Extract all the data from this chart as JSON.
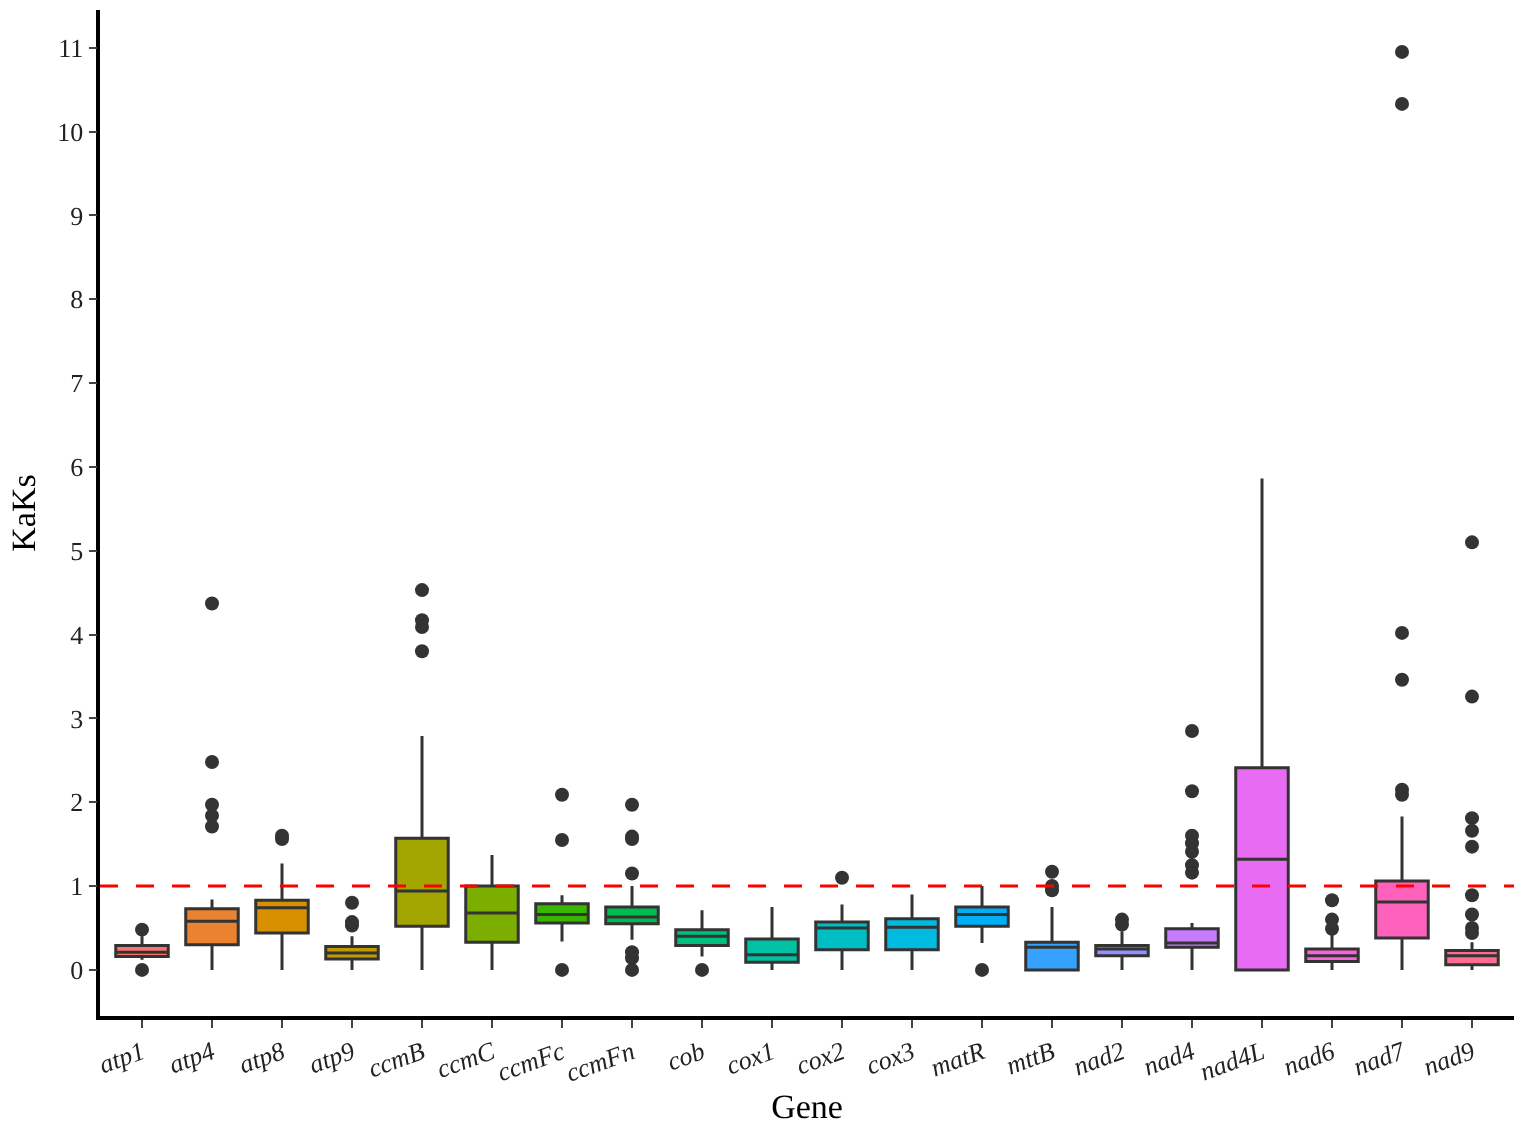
{
  "chart_data": {
    "type": "box",
    "xlabel": "Gene",
    "ylabel": "KaKs",
    "categories": [
      "atp1",
      "atp4",
      "atp8",
      "atp9",
      "ccmB",
      "ccmC",
      "ccmFc",
      "ccmFn",
      "cob",
      "cox1",
      "cox2",
      "cox3",
      "matR",
      "mttB",
      "nad2",
      "nad4",
      "nad4L",
      "nad6",
      "nad7",
      "nad9"
    ],
    "colors": [
      "#f8766d",
      "#ea8331",
      "#d89000",
      "#c09b00",
      "#a3a500",
      "#7cae00",
      "#39b600",
      "#00bb4e",
      "#00bf7d",
      "#00c1a3",
      "#00bfc4",
      "#00bae0",
      "#00b0f6",
      "#35a2ff",
      "#9590ff",
      "#c77cff",
      "#e76bf3",
      "#fa62db",
      "#ff62bc",
      "#ff6c91"
    ],
    "boxes": [
      {
        "low": 0.12,
        "q1": 0.16,
        "median": 0.21,
        "q3": 0.29,
        "high": 0.4,
        "outliers": [
          0.48,
          0
        ]
      },
      {
        "low": 0,
        "q1": 0.3,
        "median": 0.58,
        "q3": 0.73,
        "high": 0.84,
        "outliers": [
          4.37,
          2.48,
          1.97,
          1.84,
          1.71
        ]
      },
      {
        "low": 0,
        "q1": 0.44,
        "median": 0.74,
        "q3": 0.83,
        "high": 1.27,
        "outliers": [
          1.6,
          1.56
        ]
      },
      {
        "low": 0,
        "q1": 0.13,
        "median": 0.2,
        "q3": 0.28,
        "high": 0.4,
        "outliers": [
          0.53,
          0.57,
          0.8
        ]
      },
      {
        "low": 0,
        "q1": 0.52,
        "median": 0.94,
        "q3": 1.57,
        "high": 2.79,
        "outliers": [
          4.53,
          4.17,
          4.09,
          3.8
        ]
      },
      {
        "low": 0,
        "q1": 0.33,
        "median": 0.68,
        "q3": 1.0,
        "high": 1.37
      },
      {
        "low": 0.34,
        "q1": 0.56,
        "median": 0.66,
        "q3": 0.79,
        "high": 0.89,
        "outliers": [
          2.09,
          1.55,
          0
        ]
      },
      {
        "low": 0.36,
        "q1": 0.55,
        "median": 0.63,
        "q3": 0.75,
        "high": 1.0,
        "outliers": [
          1.97,
          1.59,
          1.56,
          1.15,
          0.21,
          0.14,
          0
        ]
      },
      {
        "low": 0.16,
        "q1": 0.29,
        "median": 0.4,
        "q3": 0.48,
        "high": 0.71,
        "outliers": [
          0
        ]
      },
      {
        "low": 0,
        "q1": 0.09,
        "median": 0.18,
        "q3": 0.37,
        "high": 0.75
      },
      {
        "low": 0,
        "q1": 0.24,
        "median": 0.5,
        "q3": 0.57,
        "high": 0.78,
        "outliers": [
          1.1
        ]
      },
      {
        "low": 0,
        "q1": 0.24,
        "median": 0.51,
        "q3": 0.61,
        "high": 0.9
      },
      {
        "low": 0.32,
        "q1": 0.52,
        "median": 0.66,
        "q3": 0.75,
        "high": 1.0,
        "outliers": [
          0
        ]
      },
      {
        "low": 0,
        "q1": 0,
        "median": 0.27,
        "q3": 0.33,
        "high": 0.75,
        "outliers": [
          1.17,
          1.0,
          0.95
        ]
      },
      {
        "low": 0,
        "q1": 0.17,
        "median": 0.25,
        "q3": 0.29,
        "high": 0.46,
        "outliers": [
          0.6,
          0.54
        ]
      },
      {
        "low": 0,
        "q1": 0.27,
        "median": 0.32,
        "q3": 0.49,
        "high": 0.56,
        "outliers": [
          2.85,
          2.13,
          1.6,
          1.51,
          1.41,
          1.25,
          1.16
        ]
      },
      {
        "low": 0,
        "q1": 0,
        "median": 1.32,
        "q3": 2.41,
        "high": 5.86
      },
      {
        "low": 0,
        "q1": 0.1,
        "median": 0.17,
        "q3": 0.25,
        "high": 0.42,
        "outliers": [
          0.83,
          0.6,
          0.49
        ]
      },
      {
        "low": 0,
        "q1": 0.38,
        "median": 0.81,
        "q3": 1.06,
        "high": 1.83,
        "outliers": [
          10.95,
          10.33,
          4.02,
          3.46,
          2.15,
          2.09
        ]
      },
      {
        "low": 0,
        "q1": 0.06,
        "median": 0.17,
        "q3": 0.23,
        "high": 0.33,
        "outliers": [
          5.1,
          3.26,
          1.81,
          1.66,
          1.47,
          0.89,
          0.66,
          0.5,
          0.44
        ]
      }
    ],
    "ylim": [
      -0.55,
      11.45
    ],
    "yticks": [
      0,
      1,
      2,
      3,
      4,
      5,
      6,
      7,
      8,
      9,
      10,
      11
    ],
    "ref_lines": [
      {
        "axis": "y",
        "value": 1,
        "label": null,
        "color": "#ff0000",
        "line_style": "dashed"
      }
    ]
  }
}
